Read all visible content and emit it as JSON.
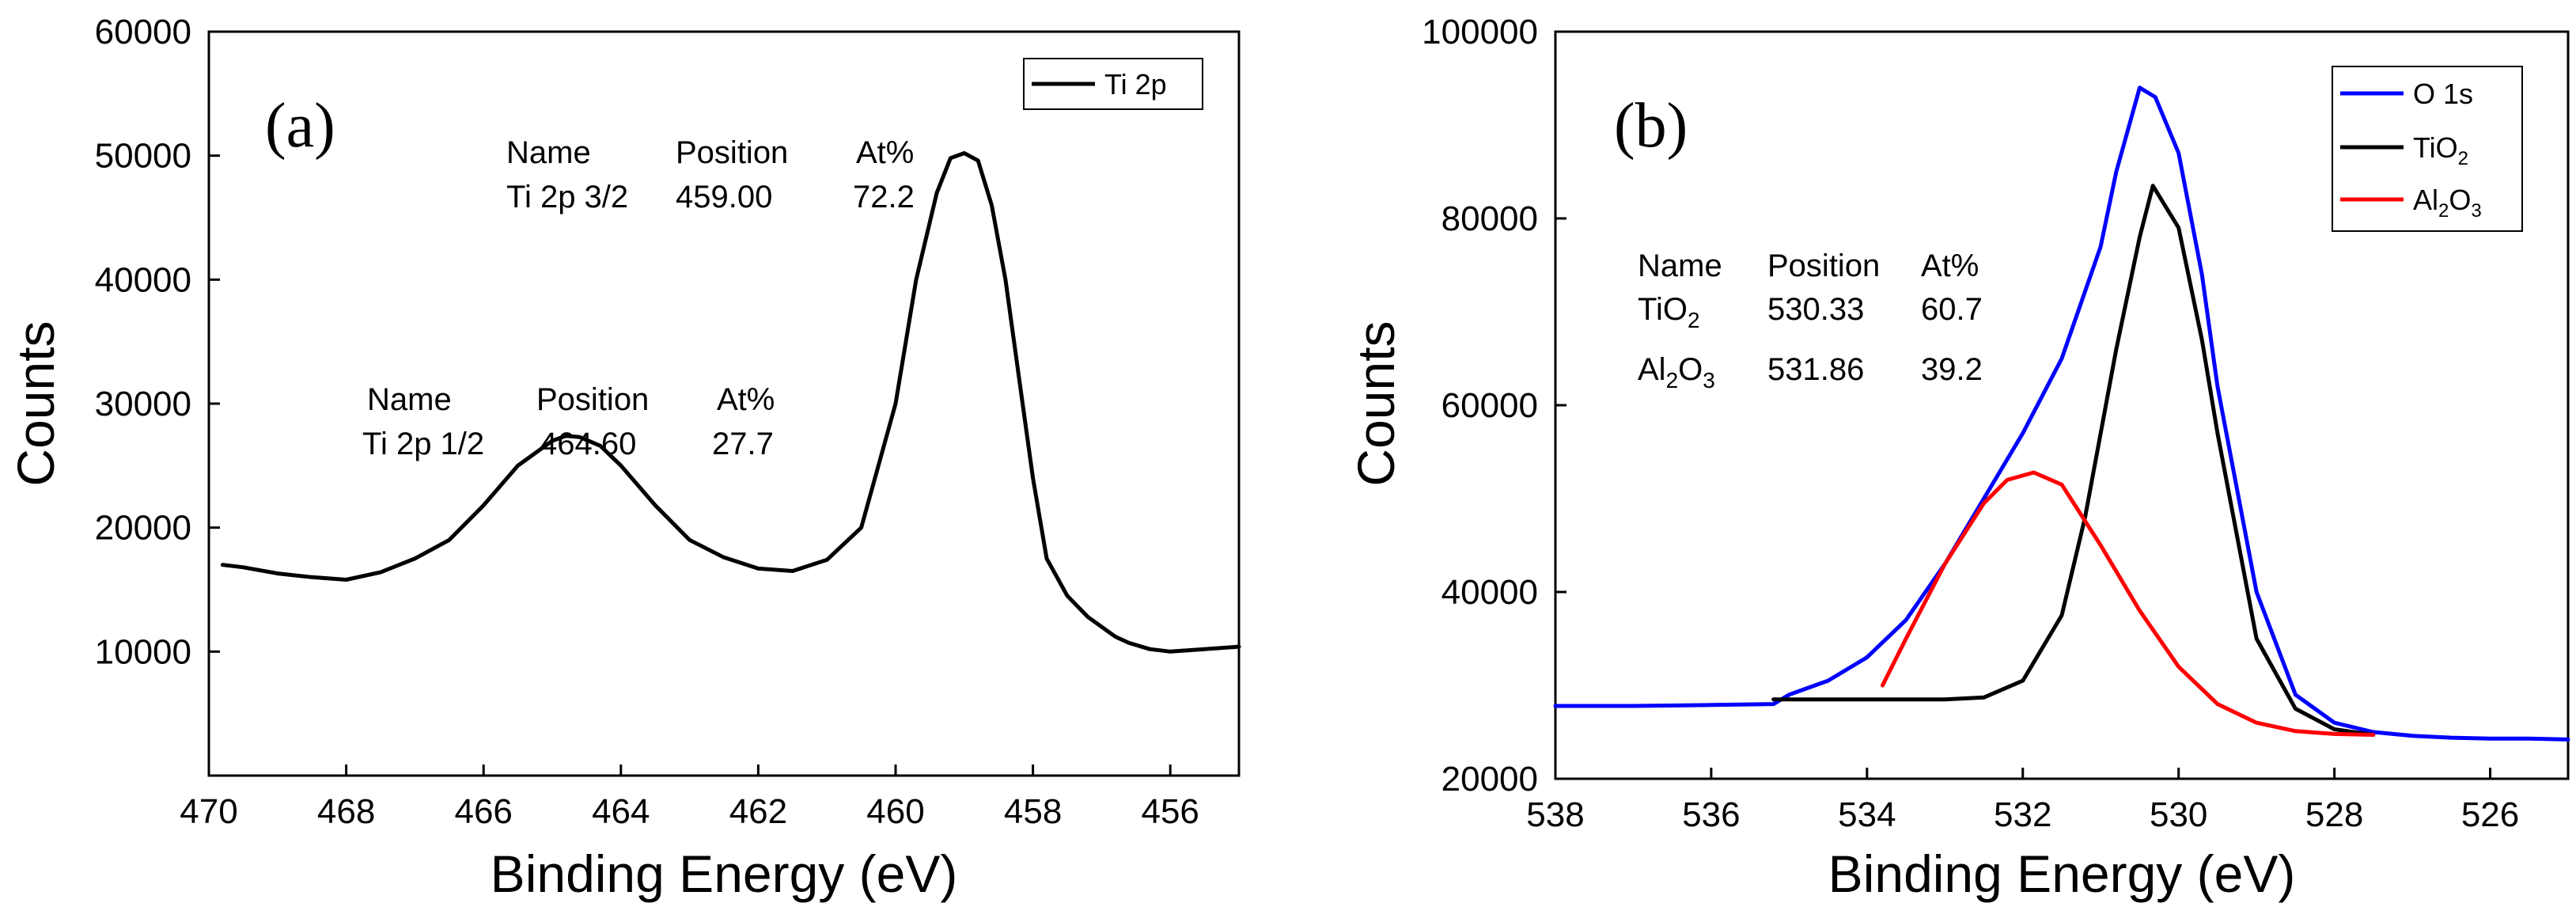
{
  "chart_data": [
    {
      "type": "line",
      "panel_label": "(a)",
      "xlabel": "Binding Energy (eV)",
      "ylabel": "Counts",
      "xlim": [
        470,
        455
      ],
      "ylim": [
        0,
        60000
      ],
      "x_ticks": [
        "470",
        "468",
        "466",
        "464",
        "462",
        "460",
        "458",
        "456"
      ],
      "y_ticks": [
        "10000",
        "20000",
        "30000",
        "40000",
        "50000",
        "60000"
      ],
      "legend": {
        "position": "top-right",
        "entries": [
          {
            "label": "Ti 2p",
            "color": "#000000"
          }
        ]
      },
      "series": [
        {
          "name": "Ti 2p",
          "color": "#000000",
          "x": [
            469.8,
            469.5,
            469.0,
            468.5,
            468.0,
            467.5,
            467.0,
            466.5,
            466.0,
            465.5,
            465.0,
            464.8,
            464.6,
            464.3,
            464.0,
            463.5,
            463.0,
            462.5,
            462.0,
            461.5,
            461.0,
            460.5,
            460.0,
            459.7,
            459.4,
            459.2,
            459.0,
            458.8,
            458.6,
            458.4,
            458.2,
            458.0,
            457.8,
            457.5,
            457.2,
            457.0,
            456.8,
            456.6,
            456.3,
            456.0,
            455.5,
            455.0
          ],
          "values": [
            17000,
            16800,
            16300,
            16000,
            15800,
            16400,
            17500,
            19000,
            21800,
            25000,
            27000,
            27400,
            27300,
            26600,
            25000,
            21800,
            19000,
            17600,
            16700,
            16500,
            17400,
            20000,
            30000,
            40000,
            47000,
            49800,
            50200,
            49600,
            46000,
            40000,
            32000,
            24000,
            17500,
            14500,
            12800,
            12000,
            11200,
            10700,
            10200,
            10000,
            10200,
            10400
          ]
        }
      ],
      "annotations": [
        {
          "row": [
            "Name",
            "Position",
            "At%"
          ]
        },
        {
          "row": [
            "Ti 2p 3/2",
            "459.00",
            "72.2"
          ]
        },
        {
          "row": [
            "Name",
            "Position",
            "At%"
          ]
        },
        {
          "row": [
            "Ti 2p 1/2",
            "464.60",
            "27.7"
          ]
        }
      ]
    },
    {
      "type": "line",
      "panel_label": "(b)",
      "xlabel": "Binding Energy (eV)",
      "ylabel": "Counts",
      "xlim": [
        538,
        525
      ],
      "ylim": [
        20000,
        100000
      ],
      "x_ticks": [
        "538",
        "536",
        "534",
        "532",
        "530",
        "528",
        "526"
      ],
      "y_ticks": [
        "20000",
        "40000",
        "60000",
        "80000",
        "100000"
      ],
      "legend": {
        "position": "top-right",
        "entries": [
          {
            "label": "O 1s",
            "color": "#0000ff"
          },
          {
            "label": "TiO",
            "sub": "2",
            "color": "#000000"
          },
          {
            "label": "Al",
            "sub": "2",
            "label2": "O",
            "sub2": "3",
            "color": "#ff0000"
          }
        ]
      },
      "series": [
        {
          "name": "O 1s",
          "color": "#0000ff",
          "x": [
            538.0,
            537.0,
            536.0,
            535.2,
            535.0,
            534.5,
            534.0,
            533.5,
            533.0,
            532.5,
            532.0,
            531.5,
            531.0,
            530.8,
            530.5,
            530.3,
            530.0,
            529.7,
            529.5,
            529.0,
            528.5,
            528.0,
            527.5,
            527.0,
            526.5,
            526.0,
            525.5,
            525.0
          ],
          "values": [
            27800,
            27800,
            27900,
            28000,
            29000,
            30500,
            33000,
            37000,
            43000,
            50000,
            57000,
            65000,
            77000,
            85000,
            94000,
            93000,
            87000,
            74000,
            62000,
            40000,
            29000,
            26000,
            25000,
            24600,
            24400,
            24300,
            24300,
            24200
          ]
        },
        {
          "name": "TiO2",
          "color": "#000000",
          "x": [
            535.2,
            534.0,
            533.0,
            532.5,
            532.0,
            531.5,
            531.2,
            531.0,
            530.8,
            530.5,
            530.33,
            530.0,
            529.7,
            529.5,
            529.0,
            528.5,
            528.0,
            527.5
          ],
          "values": [
            28500,
            28500,
            28500,
            28700,
            30500,
            37500,
            48000,
            57000,
            66000,
            78000,
            83500,
            79000,
            67000,
            57000,
            35000,
            27500,
            25300,
            24700
          ]
        },
        {
          "name": "Al2O3",
          "color": "#ff0000",
          "x": [
            533.8,
            533.5,
            533.0,
            532.5,
            532.2,
            531.86,
            531.5,
            531.0,
            530.5,
            530.0,
            529.5,
            529.0,
            528.5,
            528.0,
            527.5
          ],
          "values": [
            30000,
            35000,
            43000,
            49500,
            52000,
            52800,
            51500,
            45000,
            38000,
            32000,
            28000,
            26000,
            25100,
            24800,
            24700
          ]
        }
      ],
      "annotations": [
        {
          "row": [
            "Name",
            "Position",
            "At%"
          ]
        },
        {
          "row": [
            "TiO",
            "530.33",
            "60.7"
          ],
          "sub": "2"
        },
        {
          "row": [
            "Al",
            "531.86",
            "39.2"
          ],
          "sub": "2",
          "mid": "O",
          "sub2": "3"
        }
      ]
    }
  ]
}
